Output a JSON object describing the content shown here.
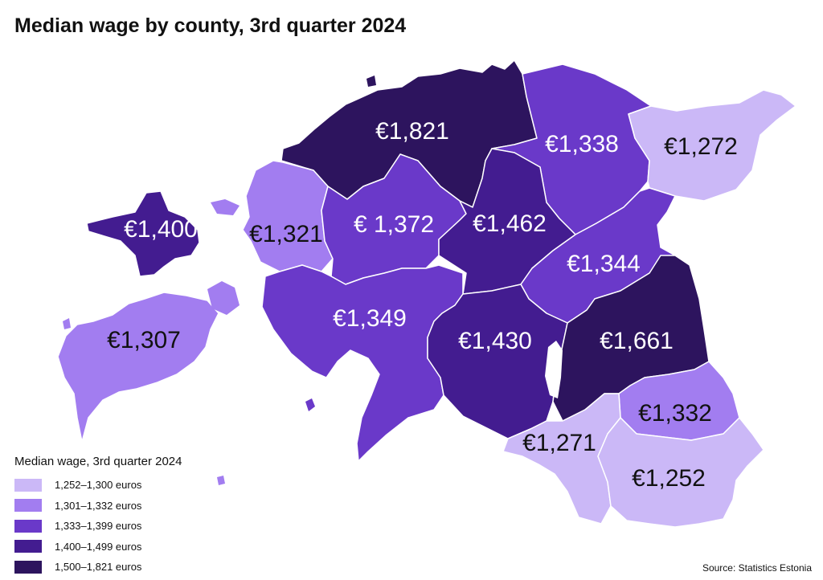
{
  "title": "Median wage by county, 3rd quarter 2024",
  "source": "Source: Statistics Estonia",
  "legend": {
    "title": "Median wage, 3rd quarter 2024",
    "items": [
      {
        "label": "1,252–1,300 euros",
        "color": "#cbb8f7"
      },
      {
        "label": "1,301–1,332 euros",
        "color": "#a27df0"
      },
      {
        "label": "1,333–1,399 euros",
        "color": "#6a39c9"
      },
      {
        "label": "1,400–1,499 euros",
        "color": "#431c90"
      },
      {
        "label": "1,500–1,821 euros",
        "color": "#2d145e"
      }
    ]
  },
  "counties": [
    {
      "id": "harju",
      "label": "€1,821",
      "class": 4
    },
    {
      "id": "laane-viru",
      "label": "€1,338",
      "class": 2
    },
    {
      "id": "ida-viru",
      "label": "€1,272",
      "class": 0
    },
    {
      "id": "hiiu",
      "label": "€1,400",
      "class": 3
    },
    {
      "id": "laane",
      "label": "€1,321",
      "class": 1
    },
    {
      "id": "rapla",
      "label": "€ 1,372",
      "class": 2
    },
    {
      "id": "jarva",
      "label": "€1,462",
      "class": 3
    },
    {
      "id": "jogeva",
      "label": "€1,344",
      "class": 2
    },
    {
      "id": "saare",
      "label": "€1,307",
      "class": 1
    },
    {
      "id": "parnu",
      "label": "€1,349",
      "class": 2
    },
    {
      "id": "viljandi",
      "label": "€1,430",
      "class": 3
    },
    {
      "id": "tartu",
      "label": "€1,661",
      "class": 4
    },
    {
      "id": "polva",
      "label": "€1,332",
      "class": 1
    },
    {
      "id": "valga",
      "label": "€1,271",
      "class": 0
    },
    {
      "id": "voru",
      "label": "€1,252",
      "class": 0
    }
  ]
}
